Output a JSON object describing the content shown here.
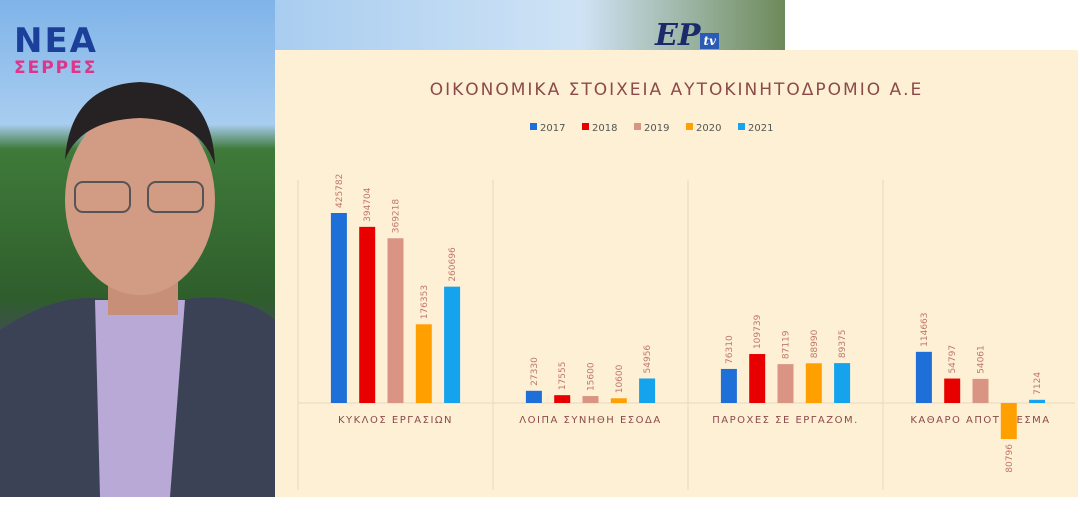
{
  "logo": {
    "line1": "ΝΕΑ",
    "line2": "ΣΕΡΡΕΣ"
  },
  "channel_logo": {
    "text": "ΕΡ",
    "badge": "tv"
  },
  "chart_data": {
    "type": "bar",
    "title": "ΟΙΚΟΝΟΜΙΚΑ ΣΤΟΙΧΕΙΑ ΑΥΤΟΚΙΝΗΤΟΔΡΟΜΙΟ Α.Ε",
    "categories": [
      "ΚΥΚΛΟΣ ΕΡΓΑΣΙΩΝ",
      "ΛΟΙΠΑ ΣΥΝΗΘΗ ΕΣΟΔΑ",
      "ΠΑΡΟΧΕΣ ΣΕ ΕΡΓΑΖΟΜ.",
      "ΚΑΘΑΡΟ ΑΠΟΤΕΛΕΣΜΑ"
    ],
    "series": [
      {
        "name": "2017",
        "color": "#1f6fd9",
        "values": [
          425782,
          27330,
          76310,
          114663
        ]
      },
      {
        "name": "2018",
        "color": "#e80000",
        "values": [
          394704,
          17555,
          109739,
          54797
        ]
      },
      {
        "name": "2019",
        "color": "#d99484",
        "values": [
          369218,
          15600,
          87119,
          54061
        ]
      },
      {
        "name": "2020",
        "color": "#ffa000",
        "values": [
          176353,
          10600,
          88990,
          -80796
        ]
      },
      {
        "name": "2021",
        "color": "#14a3ec",
        "values": [
          260696,
          54956,
          89375,
          7124
        ]
      }
    ],
    "legend": "top",
    "grid": false,
    "data_labels": true,
    "data_label_color": "#c0786a",
    "label_color": "#8c4a4a"
  }
}
